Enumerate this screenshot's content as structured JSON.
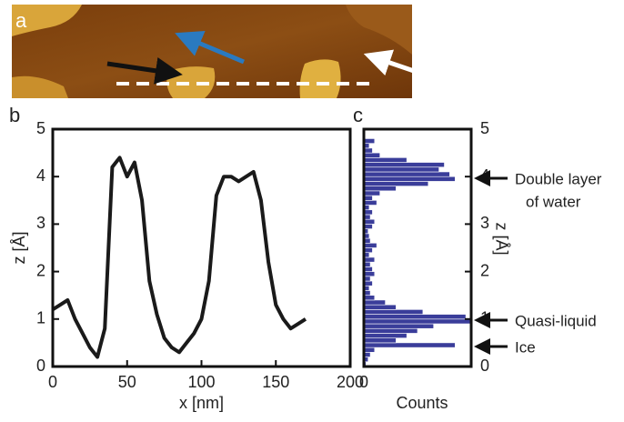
{
  "panel_labels": [
    "a",
    "b",
    "c"
  ],
  "chart_data": [
    {
      "type": "line",
      "xlabel": "x [nm]",
      "ylabel": "z [Å]",
      "x": [
        0,
        5,
        10,
        15,
        20,
        25,
        30,
        35,
        40,
        45,
        50,
        55,
        60,
        65,
        70,
        75,
        80,
        85,
        90,
        95,
        100,
        105,
        110,
        115,
        120,
        125,
        130,
        135,
        140,
        145,
        150,
        155,
        160,
        165,
        170
      ],
      "values": [
        1.2,
        1.3,
        1.4,
        1.0,
        0.7,
        0.4,
        0.2,
        0.8,
        4.2,
        4.4,
        4.0,
        4.3,
        3.5,
        1.8,
        1.1,
        0.6,
        0.4,
        0.3,
        0.5,
        0.7,
        1.0,
        1.8,
        3.6,
        4.0,
        4.0,
        3.9,
        4.0,
        4.1,
        3.5,
        2.2,
        1.3,
        1.0,
        0.8,
        0.9,
        1.0
      ],
      "color": "#1a1a1a",
      "xlim": [
        0,
        200
      ],
      "xticks": [
        0,
        50,
        100,
        150,
        200
      ],
      "ylim": [
        0,
        5
      ],
      "yticks": [
        0,
        1,
        2,
        3,
        4,
        5
      ]
    },
    {
      "type": "histogram",
      "orientation": "horizontal",
      "xlabel": "Counts",
      "ylabel": "z [Å]",
      "bins": [
        0,
        0.1,
        0.2,
        0.3,
        0.4,
        0.5,
        0.6,
        0.7,
        0.8,
        0.9,
        1,
        1.1,
        1.2,
        1.3,
        1.4,
        1.5,
        1.6,
        1.7,
        1.8,
        1.9,
        2,
        2.1,
        2.2,
        2.3,
        2.4,
        2.5,
        2.6,
        2.7,
        2.8,
        2.9,
        3,
        3.1,
        3.2,
        3.3,
        3.4,
        3.5,
        3.6,
        3.7,
        3.8,
        3.9,
        4,
        4.1,
        4.2,
        4.3,
        4.4,
        4.5,
        4.6,
        4.7,
        4.8
      ],
      "counts": [
        2,
        4,
        6,
        10,
        85,
        30,
        40,
        50,
        65,
        100,
        95,
        55,
        30,
        20,
        10,
        6,
        5,
        8,
        6,
        10,
        8,
        6,
        10,
        5,
        8,
        12,
        6,
        5,
        4,
        8,
        10,
        6,
        8,
        5,
        12,
        8,
        15,
        30,
        60,
        85,
        80,
        70,
        75,
        40,
        15,
        8,
        5,
        10
      ],
      "color": "#3a3d9a",
      "xlim": [
        0,
        100
      ],
      "xticks": [
        0
      ],
      "y2lim": [
        0,
        5
      ],
      "y2ticks": [
        0,
        1,
        2,
        3,
        4,
        5
      ],
      "annotations": [
        {
          "text": [
            "Double layer",
            "of water"
          ]
        },
        {
          "text": [
            "Quasi-liquid"
          ]
        },
        {
          "text": [
            "Ice"
          ]
        }
      ]
    }
  ]
}
